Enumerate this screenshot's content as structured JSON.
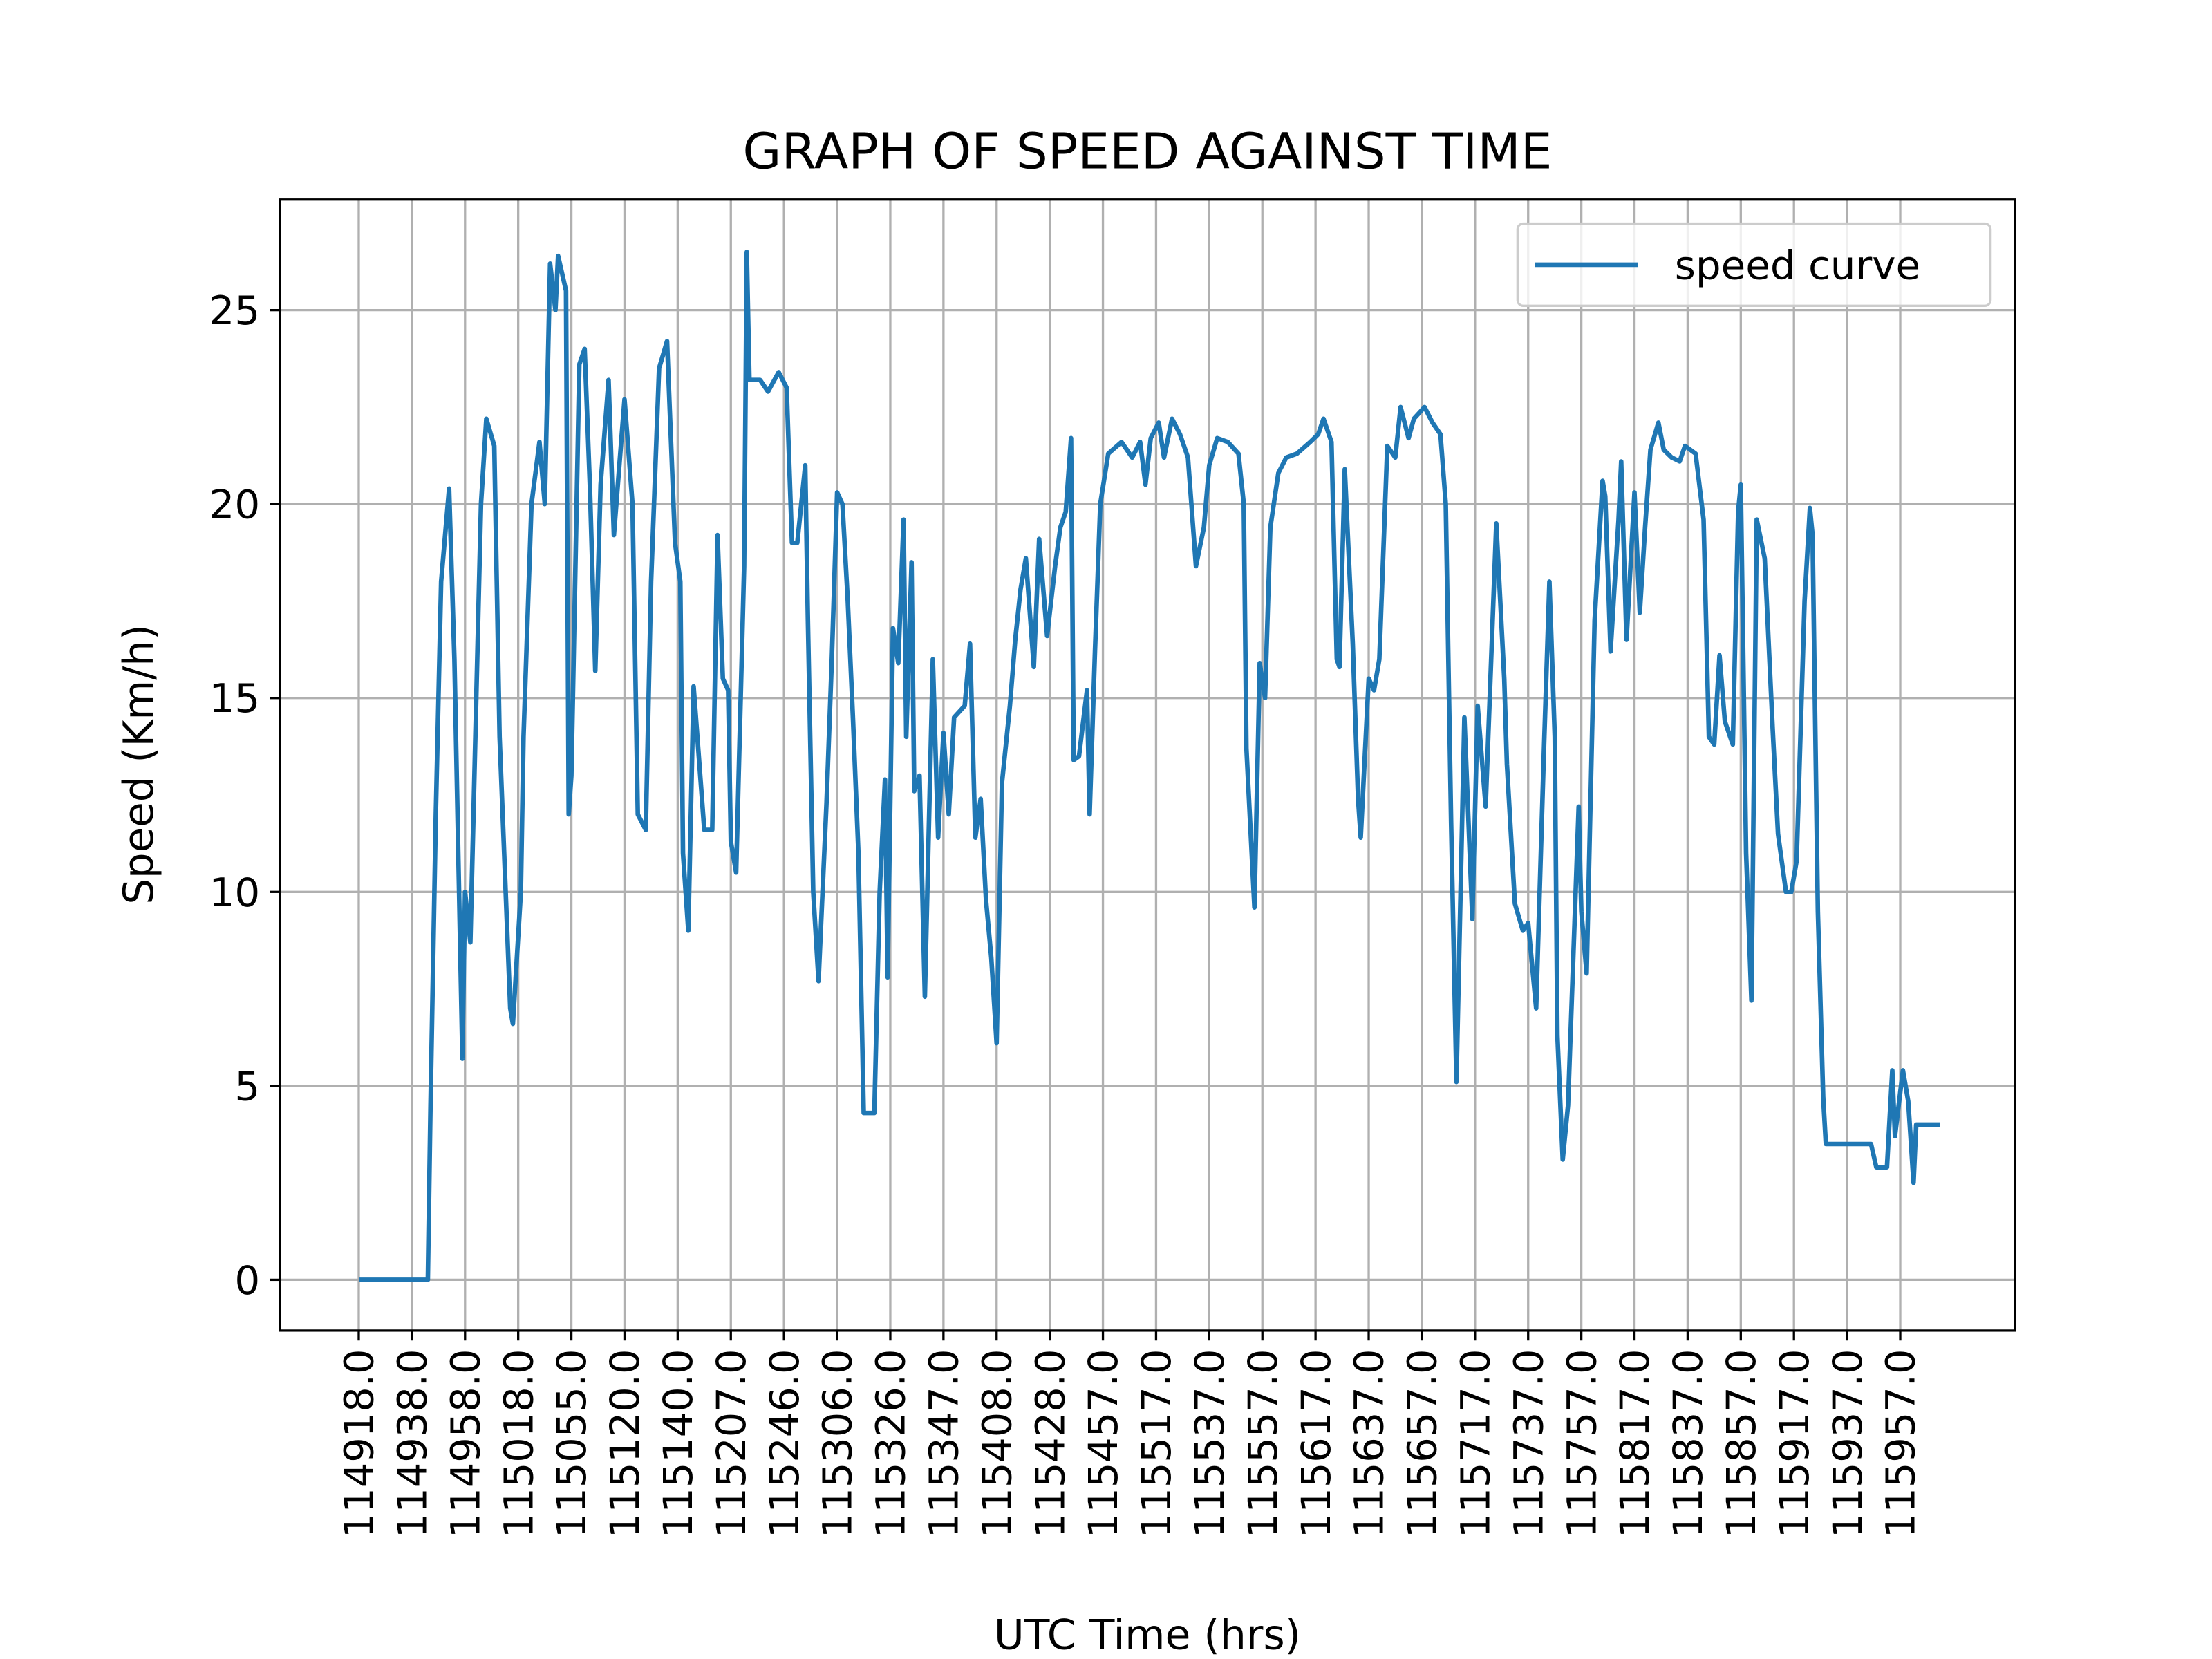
{
  "chart_data": {
    "type": "line",
    "title": "GRAPH OF SPEED AGAINST TIME",
    "x_label": "UTC Time (hrs)",
    "y_label": "Speed (Km/h)",
    "grid": true,
    "legend": "upper right",
    "xlim": [
      -29.6,
      623.1
    ],
    "ylim": [
      -1.31,
      27.85
    ],
    "yticks": [
      0,
      5,
      10,
      15,
      20,
      25
    ],
    "xticks": [
      {
        "value": 0,
        "label": "114918.0"
      },
      {
        "value": 20,
        "label": "114938.0"
      },
      {
        "value": 40,
        "label": "114958.0"
      },
      {
        "value": 60,
        "label": "115018.0"
      },
      {
        "value": 80,
        "label": "115055.0"
      },
      {
        "value": 100,
        "label": "115120.0"
      },
      {
        "value": 120,
        "label": "115140.0"
      },
      {
        "value": 140,
        "label": "115207.0"
      },
      {
        "value": 160,
        "label": "115246.0"
      },
      {
        "value": 180,
        "label": "115306.0"
      },
      {
        "value": 200,
        "label": "115326.0"
      },
      {
        "value": 220,
        "label": "115347.0"
      },
      {
        "value": 240,
        "label": "115408.0"
      },
      {
        "value": 260,
        "label": "115428.0"
      },
      {
        "value": 280,
        "label": "115457.0"
      },
      {
        "value": 300,
        "label": "115517.0"
      },
      {
        "value": 320,
        "label": "115537.0"
      },
      {
        "value": 340,
        "label": "115557.0"
      },
      {
        "value": 360,
        "label": "115617.0"
      },
      {
        "value": 380,
        "label": "115637.0"
      },
      {
        "value": 400,
        "label": "115657.0"
      },
      {
        "value": 420,
        "label": "115717.0"
      },
      {
        "value": 440,
        "label": "115737.0"
      },
      {
        "value": 460,
        "label": "115757.0"
      },
      {
        "value": 480,
        "label": "115817.0"
      },
      {
        "value": 500,
        "label": "115837.0"
      },
      {
        "value": 520,
        "label": "115857.0"
      },
      {
        "value": 540,
        "label": "115917.0"
      },
      {
        "value": 560,
        "label": "115937.0"
      },
      {
        "value": 580,
        "label": "115957.0"
      }
    ],
    "x": [
      0,
      26,
      27,
      29,
      31,
      34,
      36,
      39,
      40,
      42,
      46,
      48,
      51,
      53,
      57,
      58,
      61,
      62,
      65,
      68,
      70,
      72,
      74,
      75,
      78,
      79,
      80,
      83,
      85,
      87,
      89,
      91,
      94,
      96,
      100,
      103,
      105,
      108,
      110,
      113,
      116,
      119,
      121,
      122,
      124,
      126,
      130,
      133,
      135,
      137,
      139,
      140,
      142,
      145,
      146,
      147,
      151,
      154,
      158,
      161,
      163,
      165,
      168,
      169,
      171,
      173,
      176,
      178,
      180,
      182,
      184,
      186,
      188,
      190,
      194,
      196,
      198,
      199,
      201,
      203,
      205,
      206,
      208,
      209,
      211,
      213,
      216,
      218,
      220,
      222,
      224,
      228,
      230,
      232,
      234,
      236,
      238,
      240,
      242,
      245,
      247,
      249,
      251,
      254,
      256,
      259,
      262,
      264,
      266,
      268,
      269,
      271,
      274,
      275,
      277,
      279,
      282,
      287,
      291,
      294,
      296,
      298,
      301,
      303,
      306,
      309,
      312,
      315,
      318,
      320,
      323,
      327,
      331,
      333,
      334,
      337,
      339,
      341,
      343,
      346,
      349,
      353,
      358,
      361,
      363,
      366,
      368,
      369,
      371,
      374,
      376,
      377,
      380,
      382,
      384,
      387,
      390,
      392,
      395,
      397,
      401,
      404,
      407,
      409,
      411,
      413,
      416,
      419,
      421,
      424,
      428,
      431,
      432,
      435,
      438,
      440,
      443,
      446,
      448,
      450,
      451,
      453,
      455,
      459,
      460,
      462,
      465,
      468,
      469,
      471,
      474,
      475,
      477,
      480,
      482,
      484,
      486,
      489,
      491,
      494,
      497,
      499,
      503,
      506,
      508,
      510,
      512,
      514,
      517,
      519,
      520,
      522,
      524,
      526,
      529,
      532,
      534,
      537,
      539,
      541,
      544,
      546,
      547,
      549,
      551,
      552,
      569,
      571,
      575,
      577,
      578,
      581,
      583,
      585,
      586,
      595
    ],
    "series": [
      {
        "name": "speed curve",
        "color": "#1f77b4",
        "values": [
          0,
          0,
          4.5,
          12,
          18,
          20.4,
          16,
          5.7,
          10,
          8.7,
          20,
          22.2,
          21.5,
          14,
          7,
          6.6,
          10,
          14,
          20,
          21.6,
          20,
          26.2,
          25,
          26.4,
          25.5,
          12,
          13,
          23.6,
          24,
          20.4,
          15.7,
          20.5,
          23.2,
          19.2,
          22.7,
          20,
          12,
          11.6,
          18,
          23.5,
          24.2,
          19,
          18,
          11,
          9,
          15.3,
          11.6,
          11.6,
          19.2,
          15.5,
          15.2,
          11.3,
          10.5,
          18.4,
          26.5,
          23.2,
          23.2,
          22.9,
          23.4,
          23,
          19,
          19,
          21,
          17,
          10,
          7.7,
          12.3,
          16,
          20.3,
          20,
          17.5,
          14.4,
          11,
          4.3,
          4.3,
          10,
          12.9,
          7.8,
          16.8,
          15.9,
          19.6,
          14,
          18.5,
          12.6,
          13,
          7.3,
          16,
          11.4,
          14.1,
          12,
          14.5,
          14.8,
          16.4,
          11.4,
          12.4,
          9.8,
          8.3,
          6.1,
          12.8,
          14.8,
          16.5,
          17.8,
          18.6,
          15.8,
          19.1,
          16.6,
          18.4,
          19.4,
          19.8,
          21.7,
          13.4,
          13.5,
          15.2,
          12,
          16.2,
          20,
          21.3,
          21.6,
          21.2,
          21.6,
          20.5,
          21.7,
          22.1,
          21.2,
          22.2,
          21.8,
          21.2,
          18.4,
          19.4,
          21,
          21.7,
          21.6,
          21.3,
          20,
          13.7,
          9.6,
          15.9,
          15,
          19.4,
          20.8,
          21.2,
          21.3,
          21.6,
          21.8,
          22.2,
          21.6,
          16,
          15.8,
          20.9,
          16.4,
          12.4,
          11.4,
          15.5,
          15.2,
          16,
          21.5,
          21.2,
          22.5,
          21.7,
          22.2,
          22.5,
          22.1,
          21.8,
          20,
          11.8,
          5.1,
          14.5,
          9.3,
          14.8,
          12.2,
          19.5,
          15.5,
          13.3,
          9.7,
          9,
          9.2,
          7,
          13.8,
          18,
          14,
          6.3,
          3.1,
          4.5,
          12.2,
          9.5,
          7.9,
          17,
          20.6,
          20.2,
          16.2,
          19.6,
          21.1,
          16.5,
          20.3,
          17.2,
          19.4,
          21.4,
          22.1,
          21.4,
          21.2,
          21.1,
          21.5,
          21.3,
          19.6,
          14,
          13.8,
          16.1,
          14.4,
          13.8,
          19.8,
          20.5,
          11,
          7.2,
          19.6,
          18.6,
          14.2,
          11.5,
          10,
          10,
          10.8,
          17.5,
          19.9,
          19.2,
          9.5,
          4.7,
          3.5,
          3.5,
          2.9,
          2.9,
          5.4,
          3.7,
          5.4,
          4.6,
          2.5,
          4,
          4
        ]
      }
    ]
  }
}
